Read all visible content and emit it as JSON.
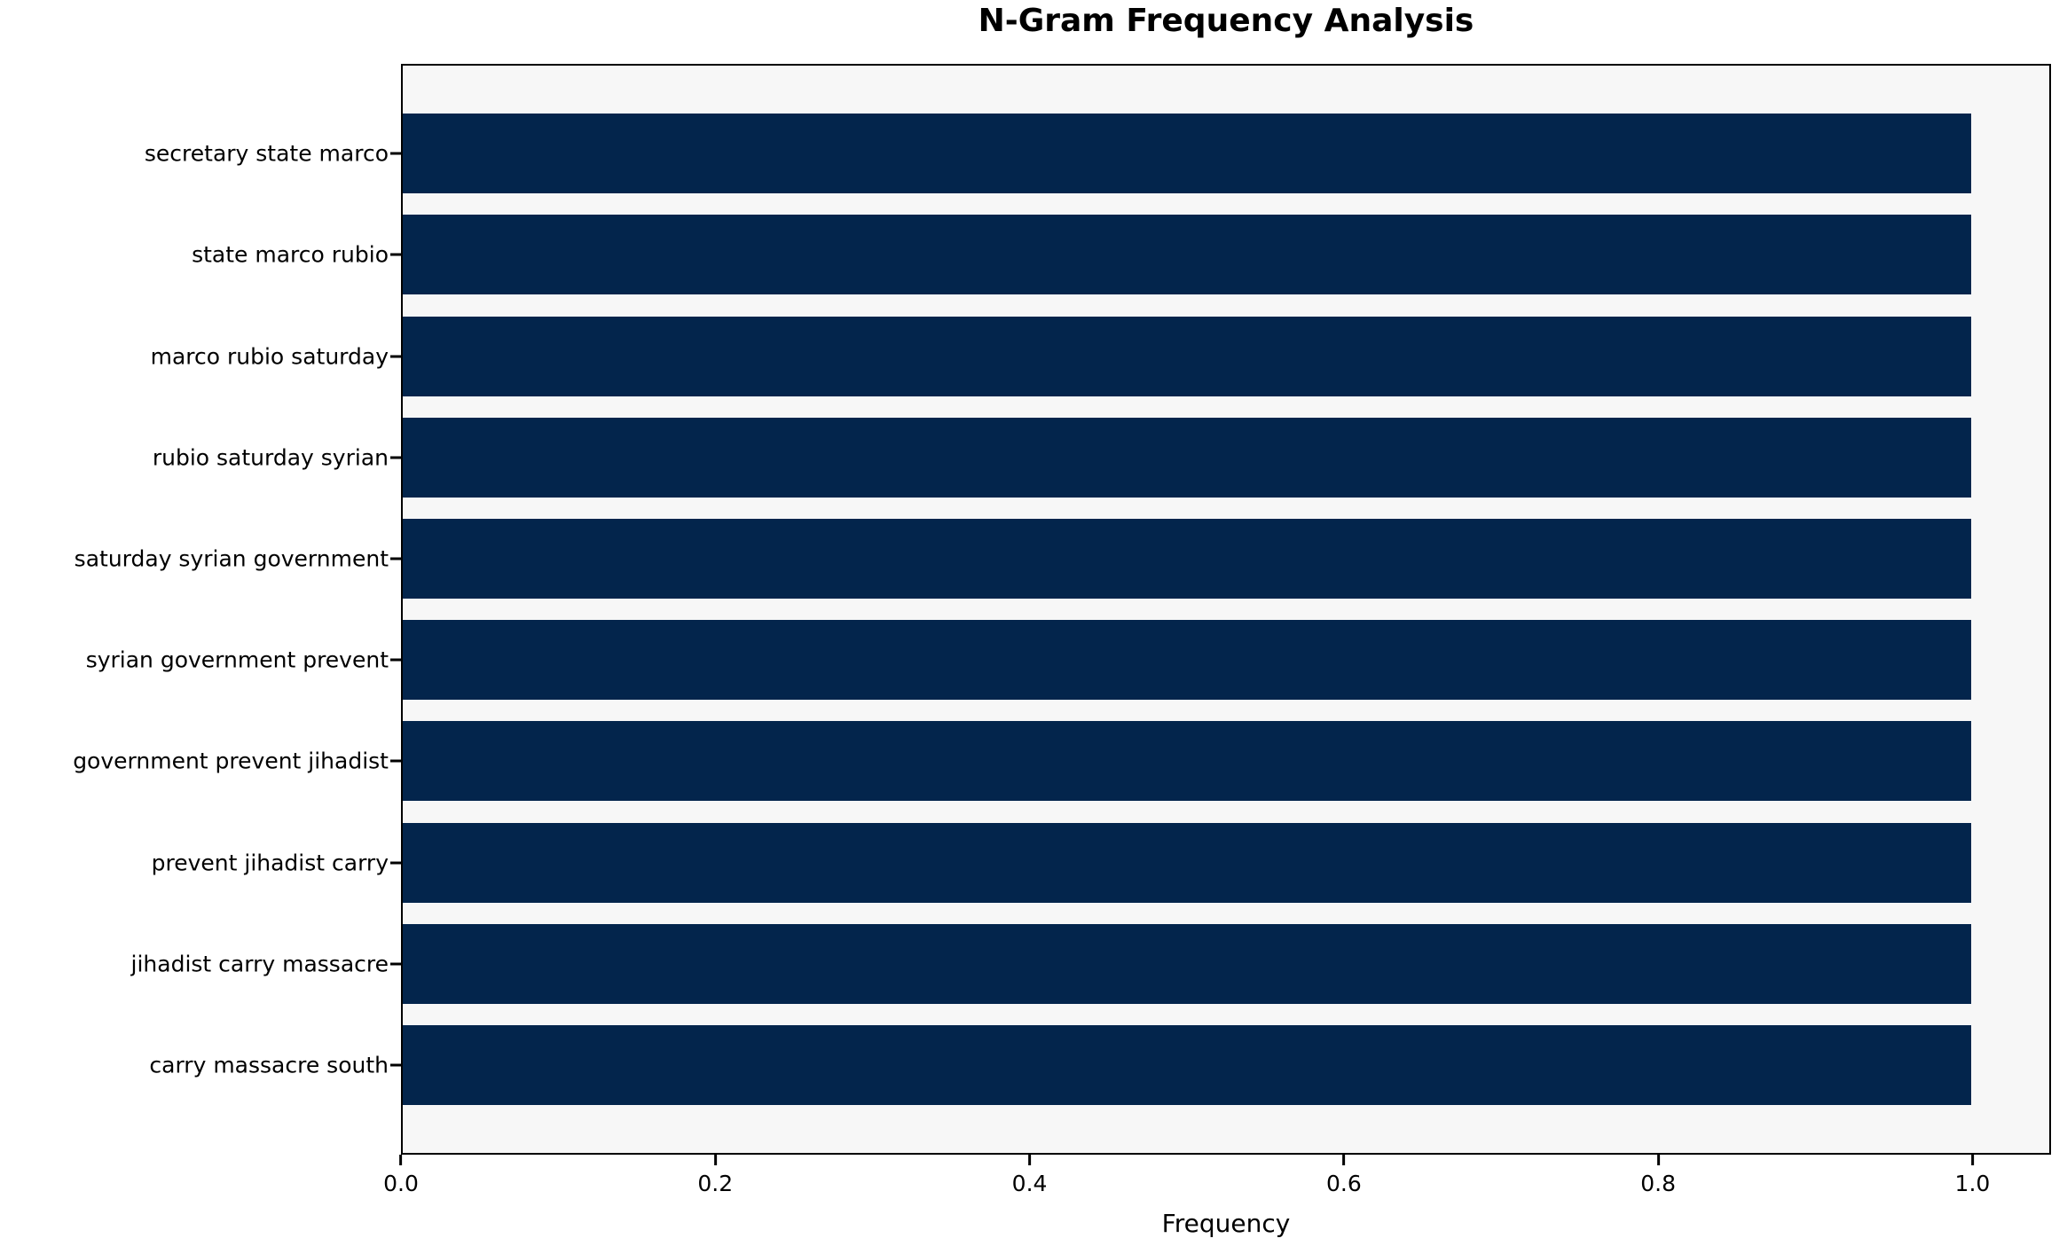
{
  "chart_data": {
    "type": "bar",
    "orientation": "horizontal",
    "title": "N-Gram Frequency Analysis",
    "xlabel": "Frequency",
    "ylabel": "",
    "categories": [
      "secretary state marco",
      "state marco rubio",
      "marco rubio saturday",
      "rubio saturday syrian",
      "saturday syrian government",
      "syrian government prevent",
      "government prevent jihadist",
      "prevent jihadist carry",
      "jihadist carry massacre",
      "carry massacre south"
    ],
    "values": [
      1.0,
      1.0,
      1.0,
      1.0,
      1.0,
      1.0,
      1.0,
      1.0,
      1.0,
      1.0
    ],
    "xlim": [
      0,
      1.05
    ],
    "xticks": [
      0.0,
      0.2,
      0.4,
      0.6,
      0.8,
      1.0
    ],
    "xtick_labels": [
      "0.0",
      "0.2",
      "0.4",
      "0.6",
      "0.8",
      "1.0"
    ],
    "grid": false,
    "legend": null,
    "bar_color": "#03254c",
    "plot_background": "#f7f7f7",
    "figure_background": "#ffffff",
    "text_color": "#000000"
  }
}
